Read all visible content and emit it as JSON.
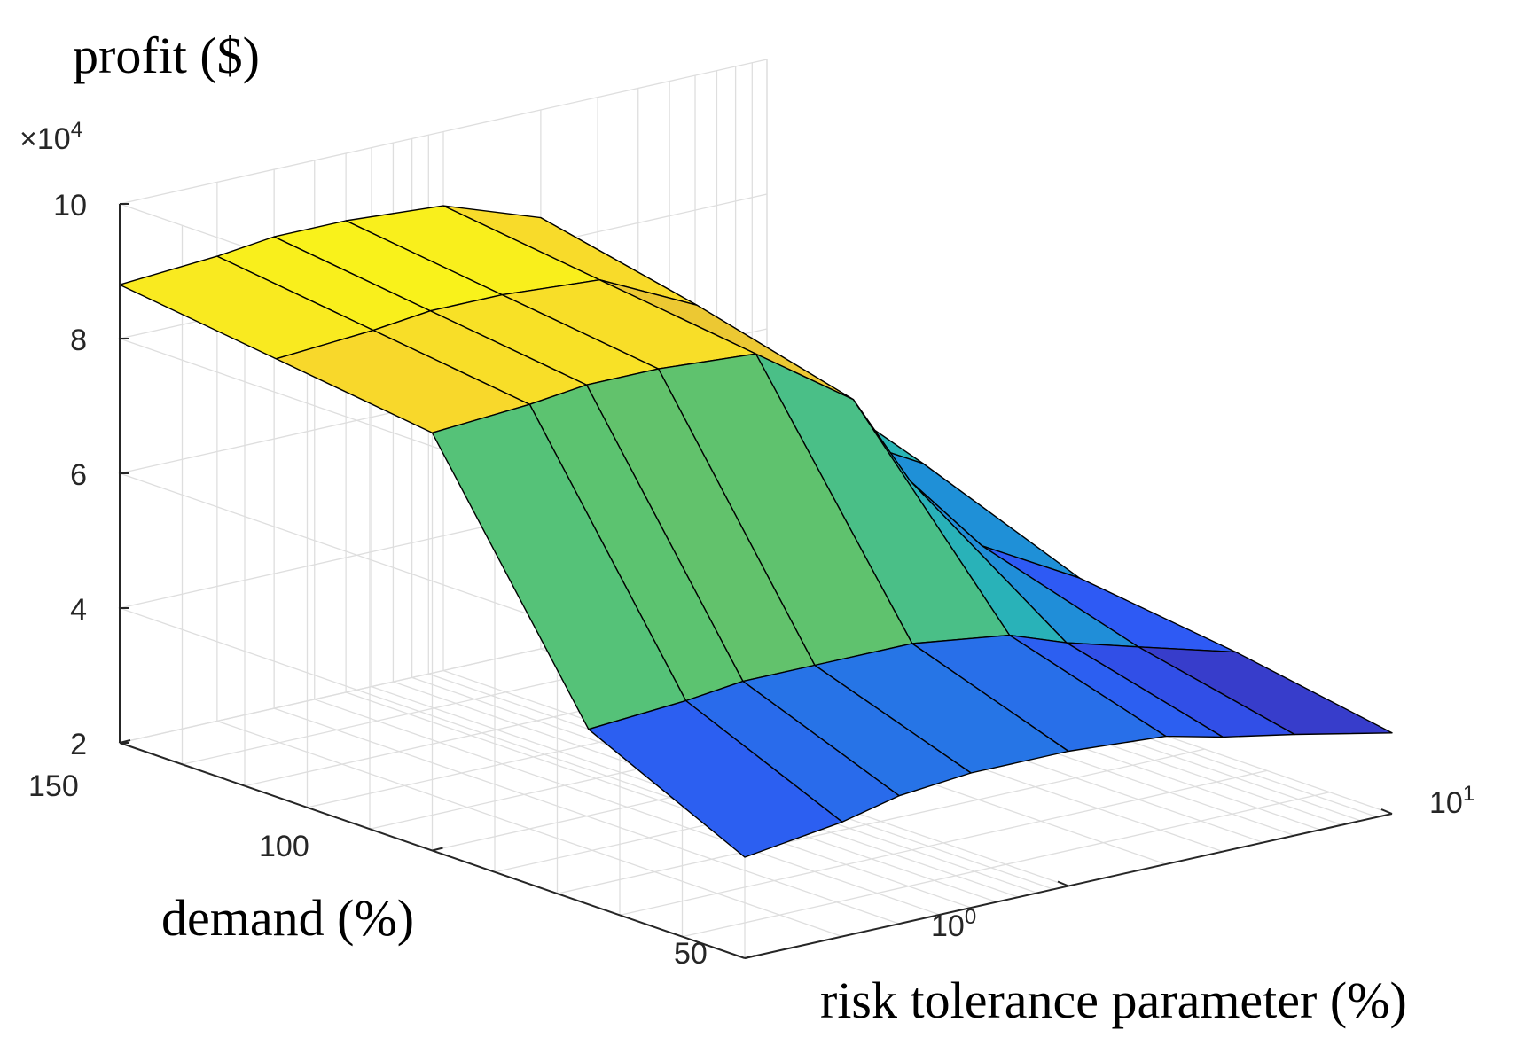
{
  "chart_data": {
    "type": "surface3d",
    "title": "",
    "zlabel": "profit ($)",
    "ylabel": "demand (%)",
    "xlabel": "risk tolerance parameter (%)",
    "z_exponent_label": {
      "base": "×10",
      "exp": "4"
    },
    "z_ticks": [
      "10",
      "8",
      "6",
      "4",
      "2"
    ],
    "z_tick_values": [
      10,
      8,
      6,
      4,
      2
    ],
    "zlim": [
      2,
      10
    ],
    "demand_ticks": [
      "150",
      "100",
      "50"
    ],
    "demand_tick_values": [
      150,
      100,
      50
    ],
    "demand_lim": [
      50,
      150
    ],
    "risk_ticks": [
      {
        "base": "10",
        "exp": "0",
        "value": 1
      },
      {
        "base": "10",
        "exp": "1",
        "value": 10
      }
    ],
    "risk_scale": "log",
    "risk_lim": [
      0.1,
      10
    ],
    "demand_values": [
      150,
      125,
      100,
      75,
      50
    ],
    "risk_values": [
      0.1,
      0.2,
      0.3,
      0.5,
      1,
      2,
      3,
      5,
      10
    ],
    "profit_x1e4": [
      [
        8.8,
        8.9,
        9.0,
        9.0,
        8.9,
        8.4,
        7.4,
        6.4,
        5.6
      ],
      [
        8.5,
        8.6,
        8.7,
        8.7,
        8.6,
        7.9,
        6.7,
        5.6,
        4.8
      ],
      [
        8.2,
        8.3,
        8.4,
        8.4,
        8.3,
        7.3,
        5.9,
        4.7,
        3.9
      ],
      [
        4.6,
        4.7,
        4.8,
        4.8,
        4.8,
        4.6,
        4.3,
        4.0,
        3.6
      ],
      [
        3.5,
        3.7,
        3.9,
        4.0,
        4.0,
        3.9,
        3.7,
        3.5,
        3.2
      ]
    ],
    "colormap": [
      "#3e26a8",
      "#2e58f5",
      "#1d98d3",
      "#2cb8b2",
      "#58c373",
      "#b6bc30",
      "#f8cb34",
      "#f9fb15"
    ],
    "grid": true
  }
}
